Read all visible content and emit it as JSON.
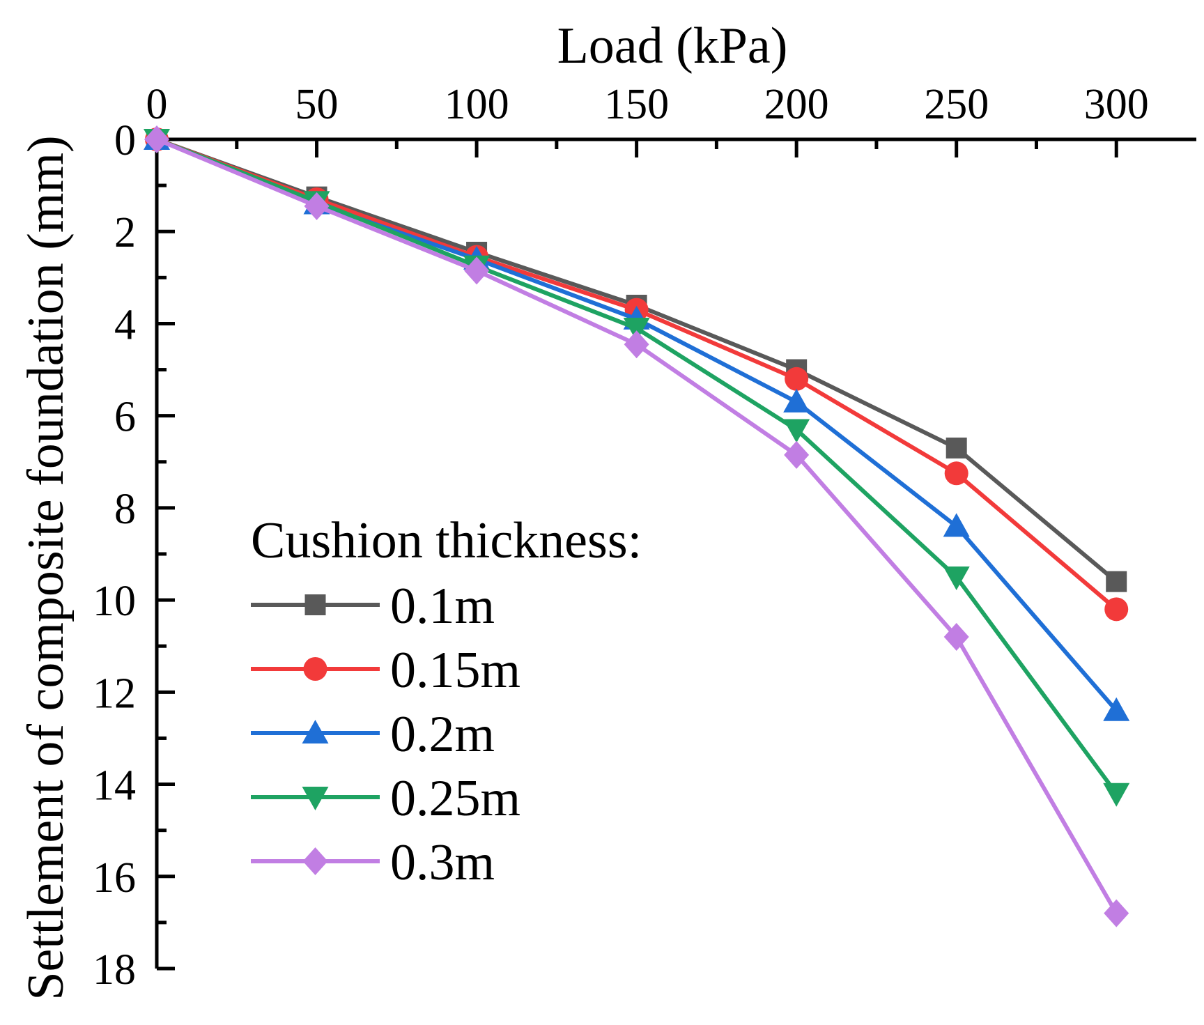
{
  "chart_data": {
    "type": "line",
    "xlabel": "Load (kPa)",
    "ylabel": "Settlement of composite foundation (mm)",
    "xlim": [
      0,
      325
    ],
    "ylim": [
      0,
      18
    ],
    "x_ticks": [
      0,
      50,
      100,
      150,
      200,
      250,
      300
    ],
    "x_tick_labels": [
      "0",
      "50",
      "100",
      "150",
      "200",
      "250",
      "300"
    ],
    "y_ticks": [
      0,
      2,
      4,
      6,
      8,
      10,
      12,
      14,
      16,
      18
    ],
    "y_tick_labels": [
      "0",
      "2",
      "4",
      "6",
      "8",
      "10",
      "12",
      "14",
      "16",
      "18"
    ],
    "x_axis_position": "top",
    "y_axis_inverted": true,
    "grid": false,
    "legend_title": "Cushion thickness:",
    "legend_position": "lower-left",
    "x": [
      0,
      50,
      100,
      150,
      200,
      250,
      300
    ],
    "series": [
      {
        "name": "0.1m",
        "color": "#595959",
        "marker": "square",
        "values": [
          0,
          1.25,
          2.45,
          3.6,
          5.0,
          6.7,
          9.6
        ]
      },
      {
        "name": "0.15m",
        "color": "#f23a3a",
        "marker": "circle",
        "values": [
          0,
          1.3,
          2.55,
          3.7,
          5.2,
          7.25,
          10.2
        ]
      },
      {
        "name": "0.2m",
        "color": "#1f6fd6",
        "marker": "triangle-up",
        "values": [
          0,
          1.4,
          2.6,
          3.9,
          5.7,
          8.4,
          12.4
        ]
      },
      {
        "name": "0.25m",
        "color": "#1ea362",
        "marker": "triangle-down",
        "values": [
          0,
          1.35,
          2.75,
          4.1,
          6.3,
          9.5,
          14.2
        ]
      },
      {
        "name": "0.3m",
        "color": "#c17ee3",
        "marker": "diamond",
        "values": [
          0,
          1.45,
          2.85,
          4.45,
          6.85,
          10.8,
          16.8
        ]
      }
    ]
  }
}
